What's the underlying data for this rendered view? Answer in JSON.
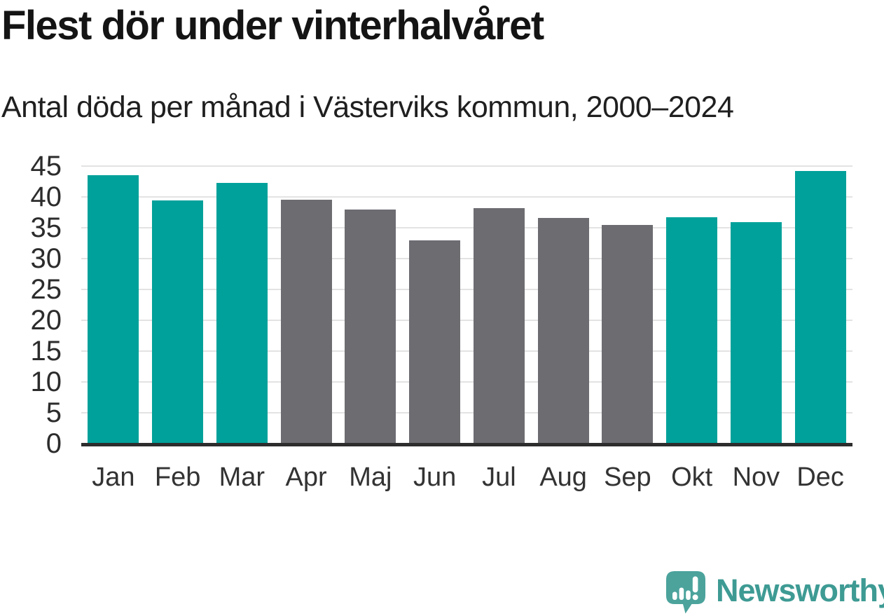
{
  "header": {
    "title": "Flest dör under vinterhalvåret",
    "subtitle": "Antal döda per månad i Västerviks kommun, 2000–2024"
  },
  "chart_data": {
    "type": "bar",
    "title": "Flest dör under vinterhalvåret",
    "subtitle": "Antal döda per månad i Västerviks kommun, 2000–2024",
    "categories": [
      "Jan",
      "Feb",
      "Mar",
      "Apr",
      "Maj",
      "Jun",
      "Jul",
      "Aug",
      "Sep",
      "Okt",
      "Nov",
      "Dec"
    ],
    "values": [
      43.5,
      39.4,
      42.3,
      39.6,
      37.9,
      33.0,
      38.2,
      36.6,
      35.5,
      36.7,
      35.9,
      44.2
    ],
    "highlighted": [
      true,
      true,
      true,
      false,
      false,
      false,
      false,
      false,
      false,
      true,
      true,
      true
    ],
    "xlabel": "",
    "ylabel": "",
    "ylim": [
      0,
      45
    ],
    "yticks": [
      0,
      5,
      10,
      15,
      20,
      25,
      30,
      35,
      40,
      45
    ],
    "grid": "horizontal",
    "legend": "none",
    "colors": {
      "highlight": "#00a19a",
      "neutral": "#6c6c71",
      "gridline": "#e3e3e3",
      "axis": "#2d2d2d",
      "tick_text": "#2c2c2c"
    }
  },
  "footer": {
    "brand": "Newsworthy",
    "logo_icon": "speech-bubble-bar-chart-icon",
    "brand_color": "#3e9b94",
    "bubble_color": "#4ba39c"
  }
}
